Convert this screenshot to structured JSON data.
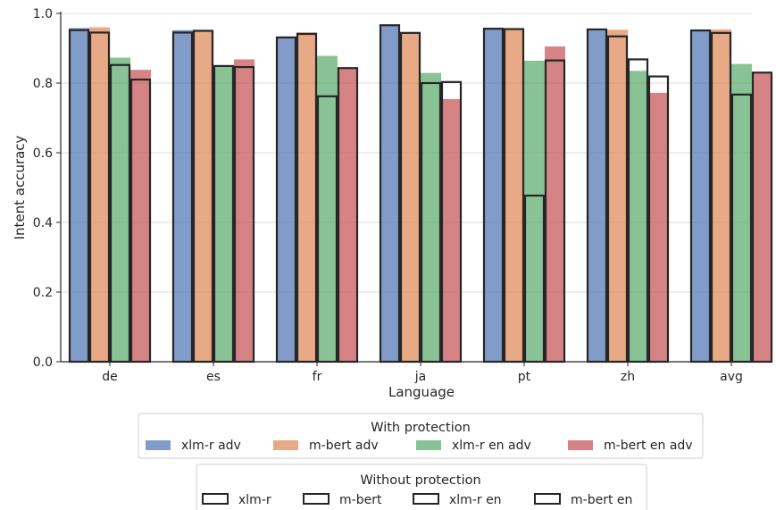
{
  "chart_data": {
    "type": "bar",
    "xlabel": "Language",
    "ylabel": "Intent accuracy",
    "ylim": [
      0,
      1.0
    ],
    "yticks": [
      "0.0",
      "0.2",
      "0.4",
      "0.6",
      "0.8",
      "1.0"
    ],
    "grid": "horizontal",
    "categories": [
      "de",
      "es",
      "fr",
      "ja",
      "pt",
      "zh",
      "avg"
    ],
    "series_with_protection": [
      {
        "name": "xlm-r adv",
        "color": "#4c72b0",
        "values": [
          0.958,
          0.952,
          0.931,
          0.966,
          0.957,
          0.956,
          0.954
        ]
      },
      {
        "name": "m-bert adv",
        "color": "#dd8452",
        "values": [
          0.96,
          0.951,
          0.946,
          0.946,
          0.955,
          0.953,
          0.954
        ]
      },
      {
        "name": "xlm-r en adv",
        "color": "#55a868",
        "values": [
          0.873,
          0.849,
          0.878,
          0.829,
          0.864,
          0.835,
          0.855
        ]
      },
      {
        "name": "m-bert en adv",
        "color": "#c44e52",
        "values": [
          0.838,
          0.868,
          0.845,
          0.754,
          0.905,
          0.772,
          0.832
        ]
      }
    ],
    "series_without_protection": [
      {
        "name": "xlm-r",
        "values": [
          0.952,
          0.945,
          0.931,
          0.966,
          0.956,
          0.954,
          0.951
        ]
      },
      {
        "name": "m-bert",
        "values": [
          0.945,
          0.95,
          0.941,
          0.944,
          0.955,
          0.934,
          0.944
        ]
      },
      {
        "name": "xlm-r en",
        "values": [
          0.852,
          0.849,
          0.762,
          0.8,
          0.477,
          0.868,
          0.767
        ]
      },
      {
        "name": "m-bert en",
        "values": [
          0.81,
          0.846,
          0.843,
          0.803,
          0.865,
          0.819,
          0.83
        ]
      }
    ],
    "legend_with_protection_title": "With protection",
    "legend_without_protection_title": "Without protection",
    "legend_placement": "bottom-center"
  }
}
